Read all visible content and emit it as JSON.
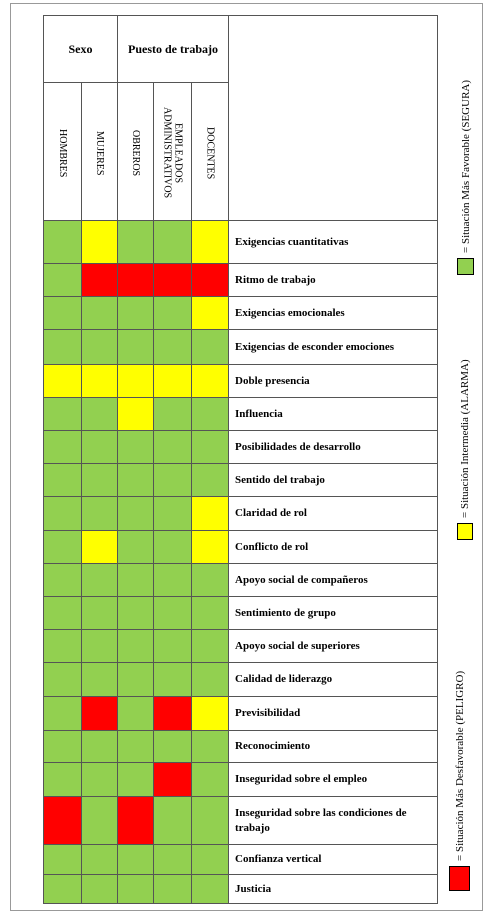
{
  "groups": [
    "Sexo",
    "Puesto de trabajo"
  ],
  "columns": [
    "HOMBRES",
    "MUJERES",
    "OBREROS",
    "EMPLEADOS ADMINISTRATIVOS",
    "DOCENTES"
  ],
  "rows": [
    {
      "label": "Exigencias cuantitativas",
      "cells": [
        "#92d050",
        "#ffff00",
        "#92d050",
        "#92d050",
        "#ffff00"
      ]
    },
    {
      "label": "Ritmo de trabajo",
      "cells": [
        "#92d050",
        "#ff0000",
        "#ff0000",
        "#ff0000",
        "#ff0000"
      ]
    },
    {
      "label": "Exigencias emocionales",
      "cells": [
        "#92d050",
        "#92d050",
        "#92d050",
        "#92d050",
        "#ffff00"
      ]
    },
    {
      "label": "Exigencias de esconder emociones",
      "cells": [
        "#92d050",
        "#92d050",
        "#92d050",
        "#92d050",
        "#92d050"
      ]
    },
    {
      "label": "Doble presencia",
      "cells": [
        "#ffff00",
        "#ffff00",
        "#ffff00",
        "#ffff00",
        "#ffff00"
      ]
    },
    {
      "label": "Influencia",
      "cells": [
        "#92d050",
        "#92d050",
        "#ffff00",
        "#92d050",
        "#92d050"
      ]
    },
    {
      "label": "Posibilidades de desarrollo",
      "cells": [
        "#92d050",
        "#92d050",
        "#92d050",
        "#92d050",
        "#92d050"
      ]
    },
    {
      "label": "Sentido del trabajo",
      "cells": [
        "#92d050",
        "#92d050",
        "#92d050",
        "#92d050",
        "#92d050"
      ]
    },
    {
      "label": "Claridad de rol",
      "cells": [
        "#92d050",
        "#92d050",
        "#92d050",
        "#92d050",
        "#ffff00"
      ]
    },
    {
      "label": "Conflicto de rol",
      "cells": [
        "#92d050",
        "#ffff00",
        "#92d050",
        "#92d050",
        "#ffff00"
      ]
    },
    {
      "label": "Apoyo social de compañeros",
      "cells": [
        "#92d050",
        "#92d050",
        "#92d050",
        "#92d050",
        "#92d050"
      ]
    },
    {
      "label": "Sentimiento de grupo",
      "cells": [
        "#92d050",
        "#92d050",
        "#92d050",
        "#92d050",
        "#92d050"
      ]
    },
    {
      "label": "Apoyo social de superiores",
      "cells": [
        "#92d050",
        "#92d050",
        "#92d050",
        "#92d050",
        "#92d050"
      ]
    },
    {
      "label": "Calidad de liderazgo",
      "cells": [
        "#92d050",
        "#92d050",
        "#92d050",
        "#92d050",
        "#92d050"
      ]
    },
    {
      "label": "Previsibilidad",
      "cells": [
        "#92d050",
        "#ff0000",
        "#92d050",
        "#ff0000",
        "#ffff00"
      ]
    },
    {
      "label": "Reconocimiento",
      "cells": [
        "#92d050",
        "#92d050",
        "#92d050",
        "#92d050",
        "#92d050"
      ]
    },
    {
      "label": "Inseguridad sobre el empleo",
      "cells": [
        "#92d050",
        "#92d050",
        "#92d050",
        "#ff0000",
        "#92d050"
      ]
    },
    {
      "label": "Inseguridad sobre las condiciones de trabajo",
      "cells": [
        "#ff0000",
        "#92d050",
        "#ff0000",
        "#92d050",
        "#92d050"
      ]
    },
    {
      "label": "Confianza vertical",
      "cells": [
        "#92d050",
        "#92d050",
        "#92d050",
        "#92d050",
        "#92d050"
      ]
    },
    {
      "label": "Justicia",
      "cells": [
        "#92d050",
        "#92d050",
        "#92d050",
        "#92d050",
        "#92d050"
      ]
    }
  ],
  "legend": [
    {
      "color": "#92d050",
      "label": "= Situación Más Favorable (SEGURA)"
    },
    {
      "color": "#ffff00",
      "label": "= Situación Intermedia (ALARMA)"
    },
    {
      "color": "#ff0000",
      "label": "= Situación Más Desfavorable (PELIGRO)"
    }
  ]
}
